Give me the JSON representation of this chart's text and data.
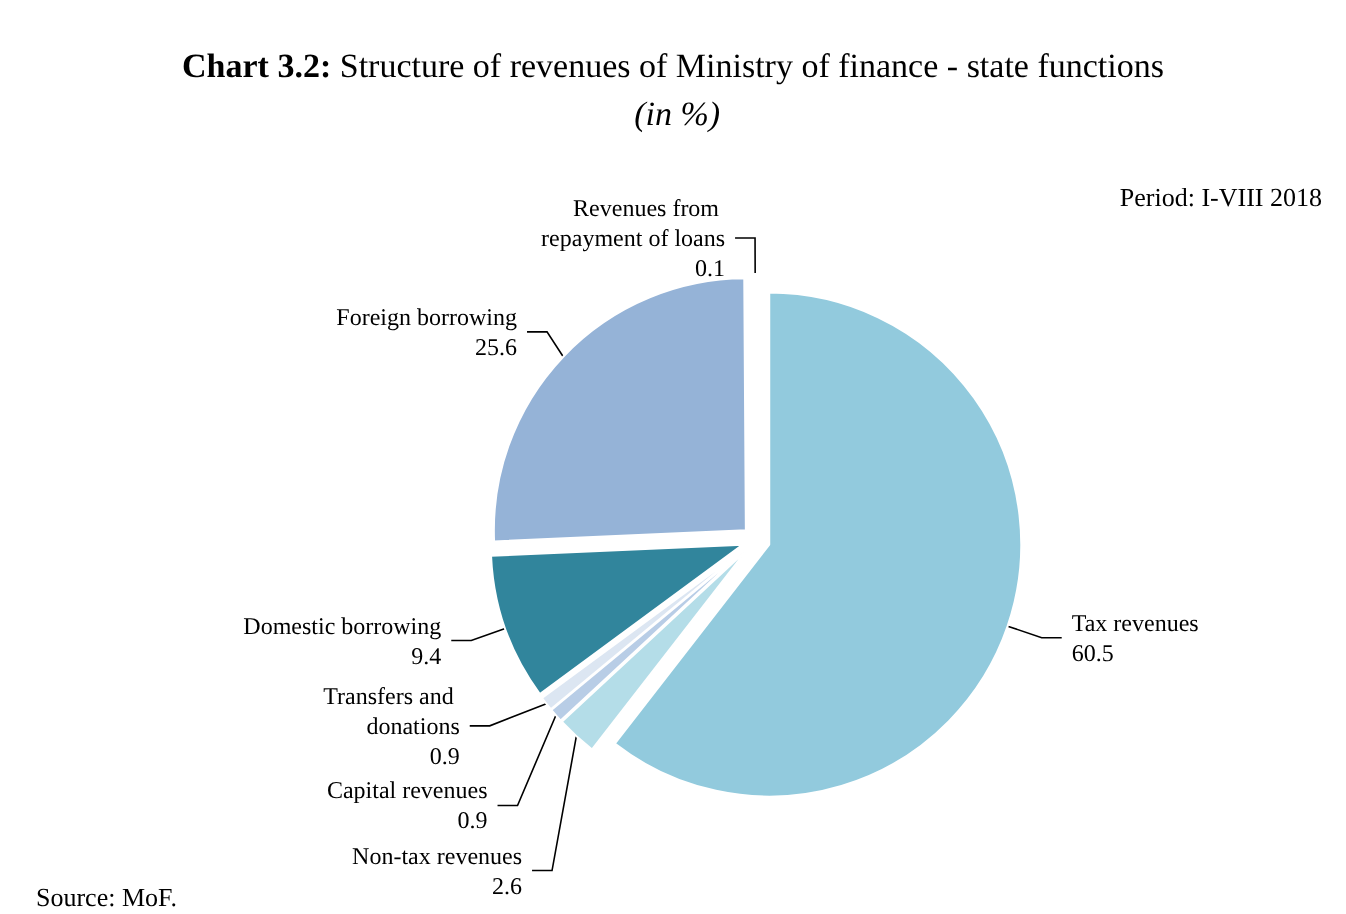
{
  "chart_data": {
    "type": "pie",
    "title": "Chart 3.2: Structure of revenues of Ministry of finance - state functions (in %)",
    "categories": [
      "Tax revenues",
      "Non-tax revenues",
      "Capital revenues",
      "Transfers and donations",
      "Domestic borrowing",
      "Foreign borrowing",
      "Revenues from repayment of loans"
    ],
    "values": [
      60.5,
      2.6,
      0.9,
      0.9,
      9.4,
      25.6,
      0.1
    ],
    "colors": [
      "#92cadd",
      "#b4dde8",
      "#b8cde6",
      "#dce6f2",
      "#31859c",
      "#95b3d7",
      "#4f81bd"
    ],
    "data_labels": true,
    "legend": false,
    "annotations": [
      "Period: I-VIII 2018",
      "Source: MoF."
    ]
  }
}
